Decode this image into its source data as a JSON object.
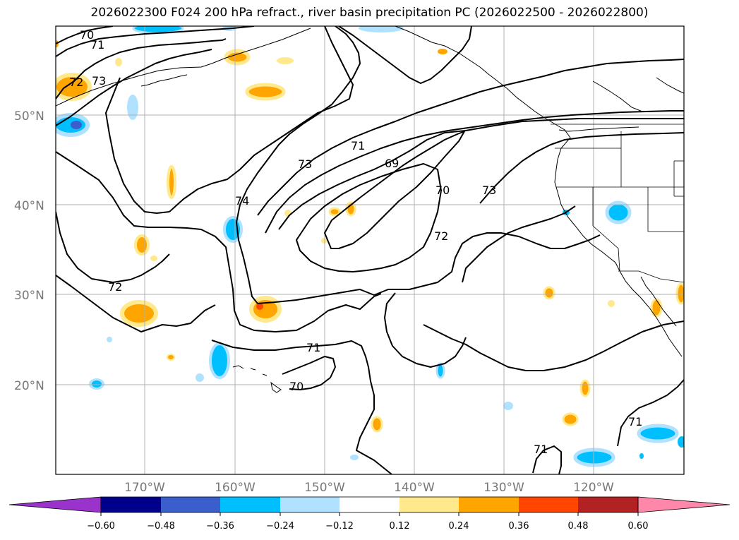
{
  "title": "2026022300 F024 200 hPa refract., river basin precipitation PC (2026022500 - 2026022800)",
  "lat_labels": [
    "50°N",
    "40°N",
    "30°N",
    "20°N"
  ],
  "lon_labels": [
    "170°W",
    "160°W",
    "150°W",
    "140°W",
    "130°W",
    "120°W"
  ],
  "contour_labels": [
    "70",
    "71",
    "73",
    "72",
    "73",
    "71",
    "69",
    "70",
    "72",
    "73",
    "74",
    "72",
    "71",
    "70",
    "71",
    "71"
  ],
  "colorbar": {
    "ticks": [
      "−0.60",
      "−0.48",
      "−0.36",
      "−0.24",
      "−0.12",
      "0.12",
      "0.24",
      "0.36",
      "0.48",
      "0.60"
    ],
    "colors": [
      "#9933cc",
      "#00008b",
      "#3a5fcd",
      "#00bfff",
      "#b0e2ff",
      "#ffffff",
      "#ffe98c",
      "#ffa500",
      "#ff4500",
      "#b22222",
      "#ff88aa"
    ]
  }
}
